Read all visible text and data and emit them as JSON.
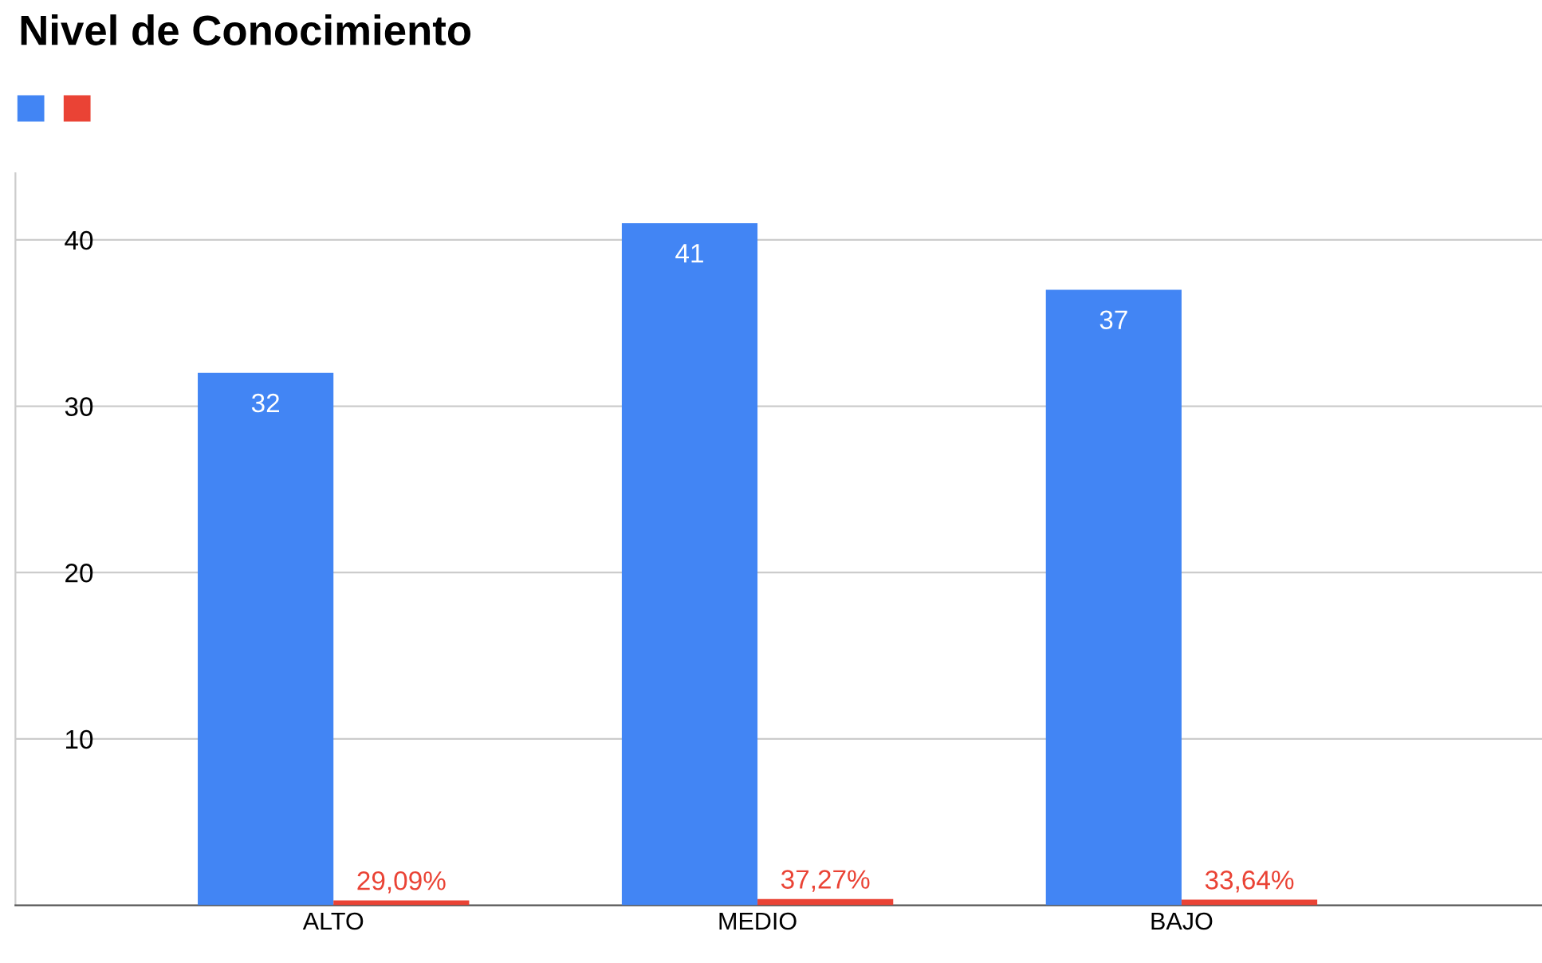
{
  "chart_data": {
    "type": "bar",
    "title": "Nivel de Conocimiento",
    "categories": [
      "ALTO",
      "MEDIO",
      "BAJO"
    ],
    "series": [
      {
        "color": "#4285f4",
        "values": [
          32,
          41,
          37
        ],
        "value_labels": [
          "32",
          "41",
          "37"
        ]
      },
      {
        "color": "#ea4335",
        "values": [
          0.2909,
          0.3727,
          0.3364
        ],
        "value_labels": [
          "29,09%",
          "37,27%",
          "33,64%"
        ]
      }
    ],
    "ylim": [
      0,
      44
    ],
    "yticks": [
      10,
      20,
      30,
      40
    ],
    "grid": "y"
  }
}
